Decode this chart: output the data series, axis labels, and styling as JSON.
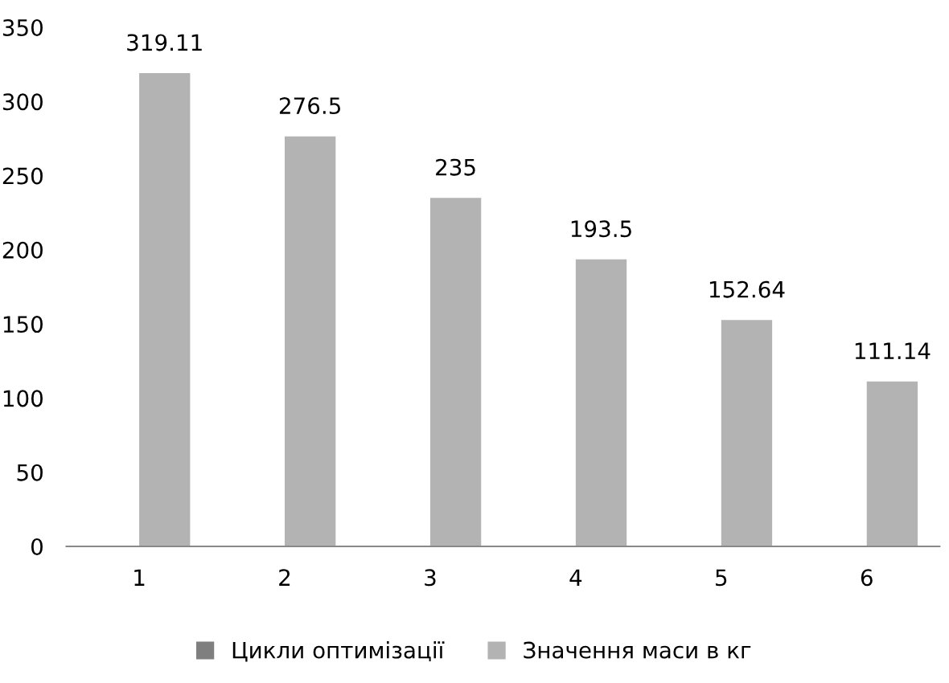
{
  "chart_data": {
    "type": "bar",
    "categories": [
      "1",
      "2",
      "3",
      "4",
      "5",
      "6"
    ],
    "series": [
      {
        "name": "Цикли оптимізації",
        "color": "#7f7f7f",
        "values": [
          null,
          null,
          null,
          null,
          null,
          null
        ]
      },
      {
        "name": "Значення маси в кг",
        "color": "#b3b3b3",
        "values": [
          319.11,
          276.5,
          235,
          193.5,
          152.64,
          111.14
        ]
      }
    ],
    "ylim": [
      0,
      350
    ],
    "yticks": [
      0,
      50,
      100,
      150,
      200,
      250,
      300,
      350
    ],
    "data_labels": true,
    "grid": false,
    "legend": "bottom"
  }
}
